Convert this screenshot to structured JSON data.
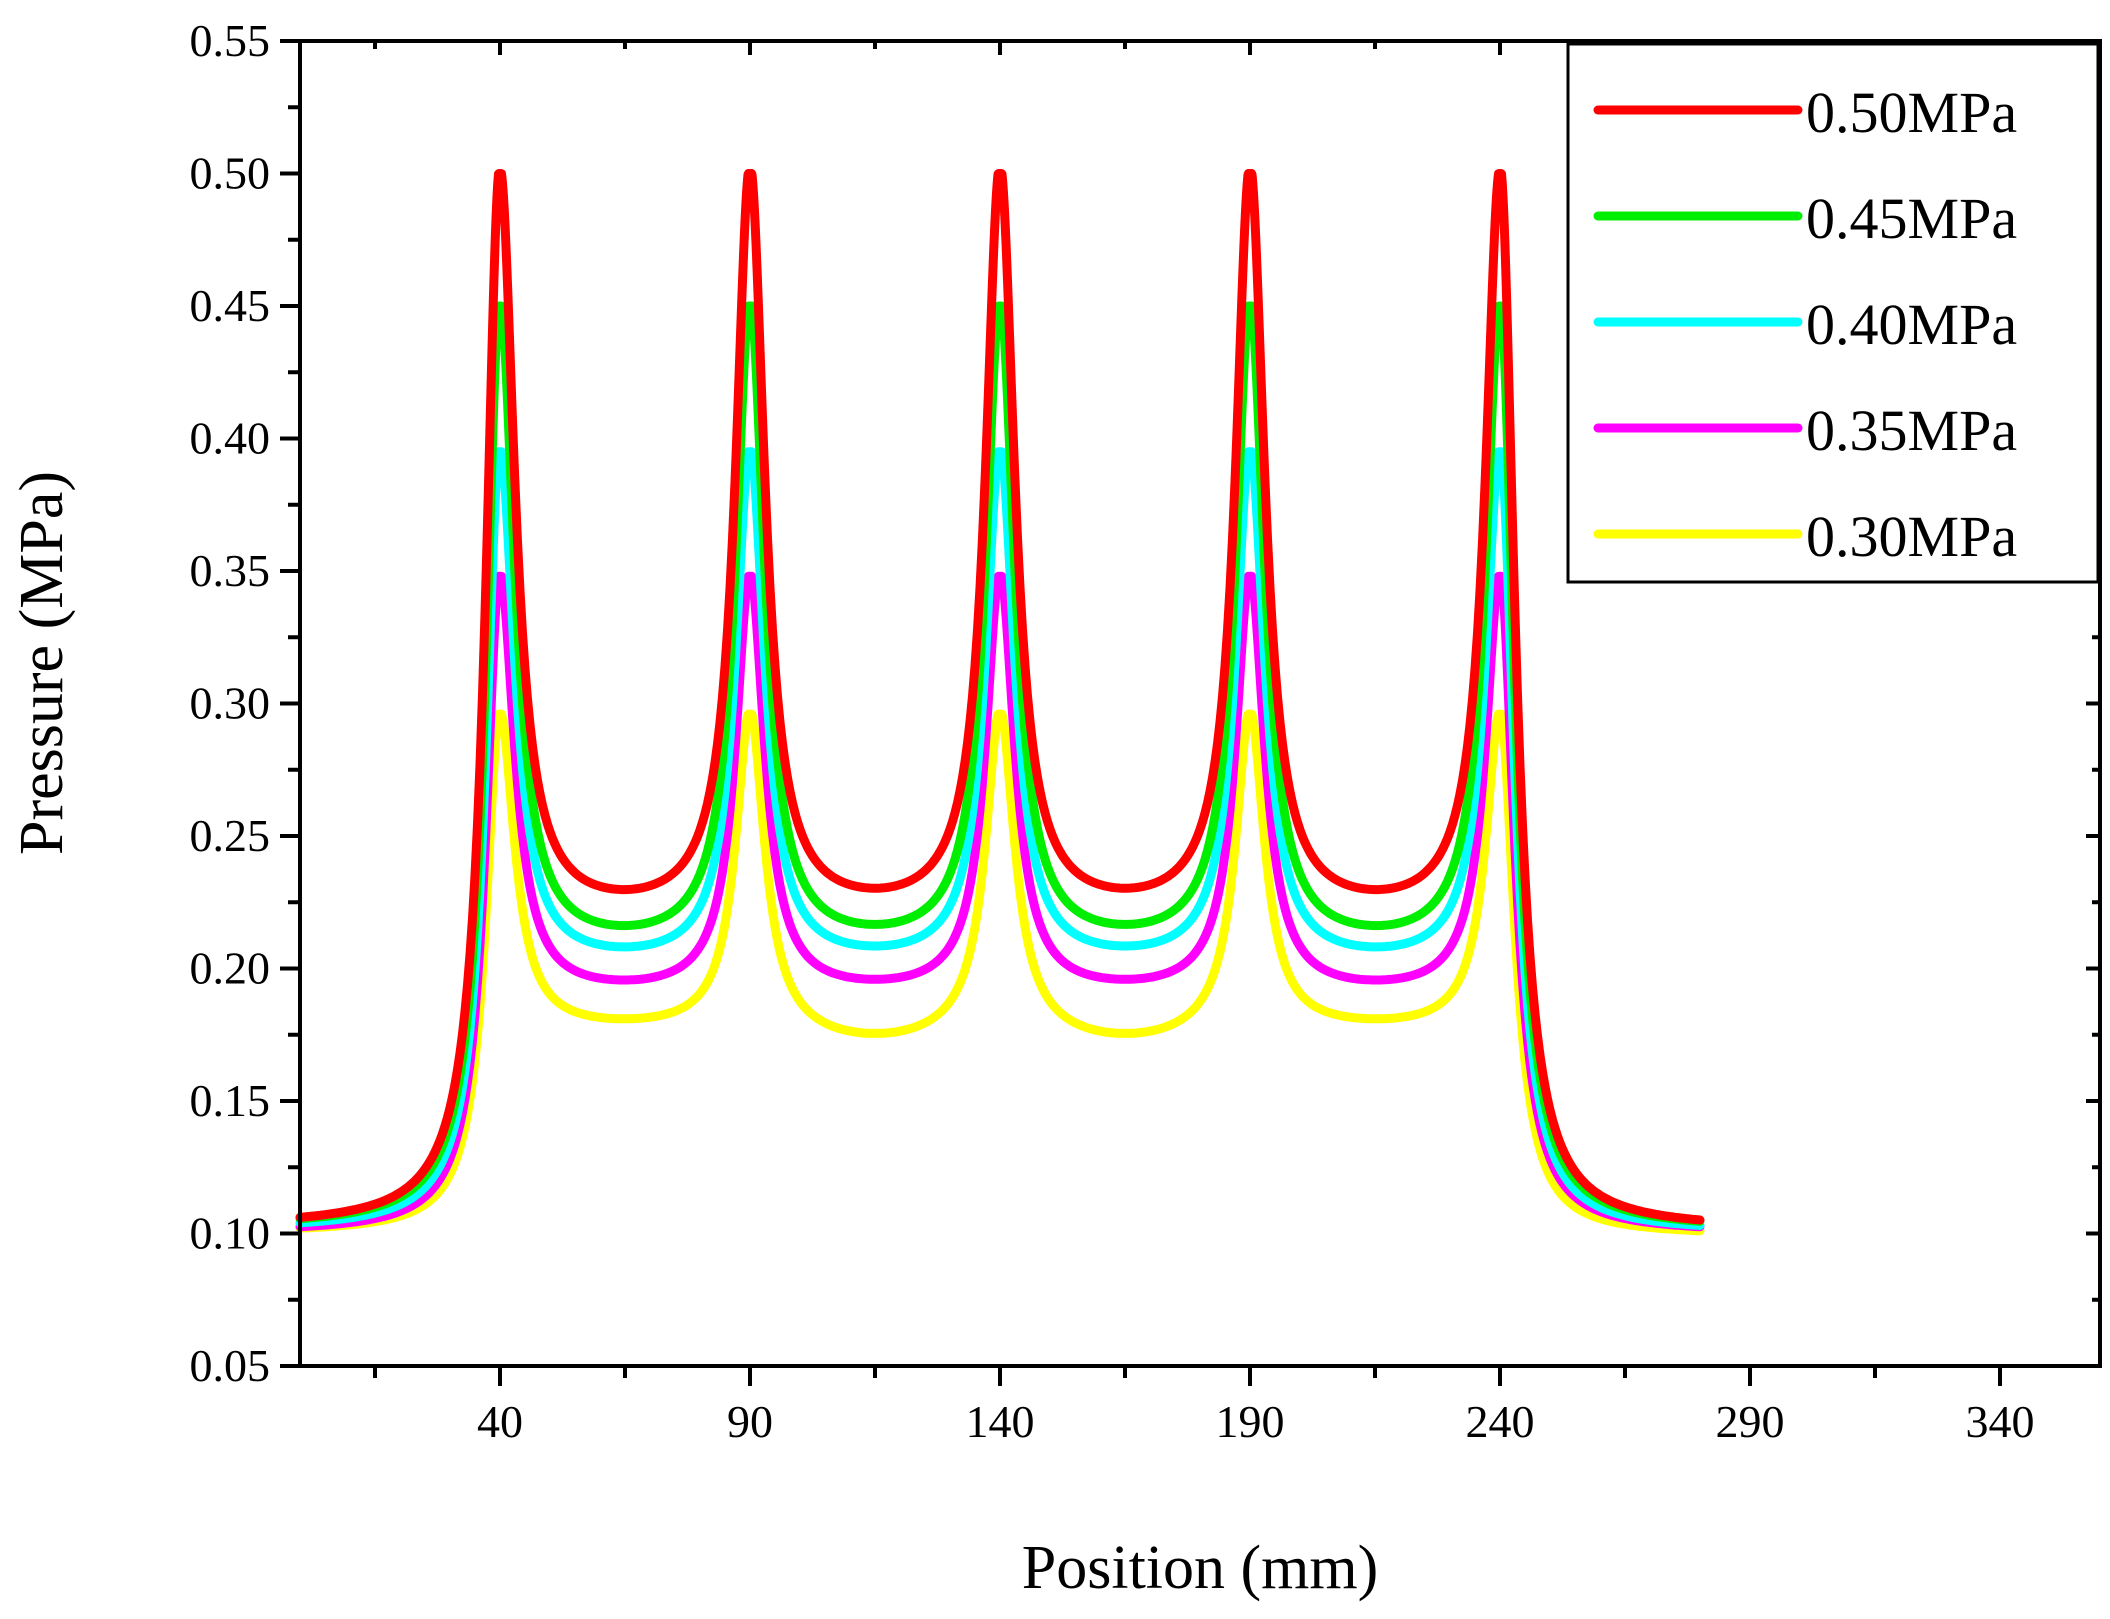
{
  "chart_data": {
    "type": "line",
    "title": "",
    "xlabel": "Position (mm)",
    "ylabel": "Pressure (MPa)",
    "xlim": [
      0,
      360
    ],
    "ylim": [
      0.05,
      0.55
    ],
    "x_ticks": [
      40,
      90,
      140,
      190,
      240,
      290,
      340
    ],
    "x_tick_labels": [
      "40",
      "90",
      "140",
      "190",
      "240",
      "290",
      "340"
    ],
    "y_ticks": [
      0.05,
      0.1,
      0.15,
      0.2,
      0.25,
      0.3,
      0.35,
      0.4,
      0.45,
      0.5,
      0.55
    ],
    "y_tick_labels": [
      "0.05",
      "0.10",
      "0.15",
      "0.20",
      "0.25",
      "0.30",
      "0.35",
      "0.40",
      "0.45",
      "0.50",
      "0.55"
    ],
    "x_minor_step": 25,
    "y_minor_step": 0.025,
    "grid": false,
    "legend_position": "top-right",
    "peak_positions": [
      40,
      90,
      140,
      190,
      240
    ],
    "x_range_data": [
      0,
      280
    ],
    "series": [
      {
        "name": "0.50MPa",
        "color": "#ff0000",
        "start": 0.102,
        "end": 0.101,
        "peak": 0.5,
        "valley": 0.218,
        "mid_valley": 0.218
      },
      {
        "name": "0.45MPa",
        "color": "#00ee00",
        "start": 0.102,
        "end": 0.101,
        "peak": 0.45,
        "valley": 0.206,
        "mid_valley": 0.206
      },
      {
        "name": "0.40MPa",
        "color": "#00ffff",
        "start": 0.101,
        "end": 0.1,
        "peak": 0.395,
        "valley": 0.2,
        "mid_valley": 0.2
      },
      {
        "name": "0.35MPa",
        "color": "#ff00ff",
        "start": 0.1,
        "end": 0.1,
        "peak": 0.348,
        "valley": 0.189,
        "mid_valley": 0.189
      },
      {
        "name": "0.30MPa",
        "color": "#ffff00",
        "start": 0.1,
        "end": 0.099,
        "peak": 0.296,
        "valley": 0.176,
        "mid_valley": 0.17
      }
    ]
  }
}
